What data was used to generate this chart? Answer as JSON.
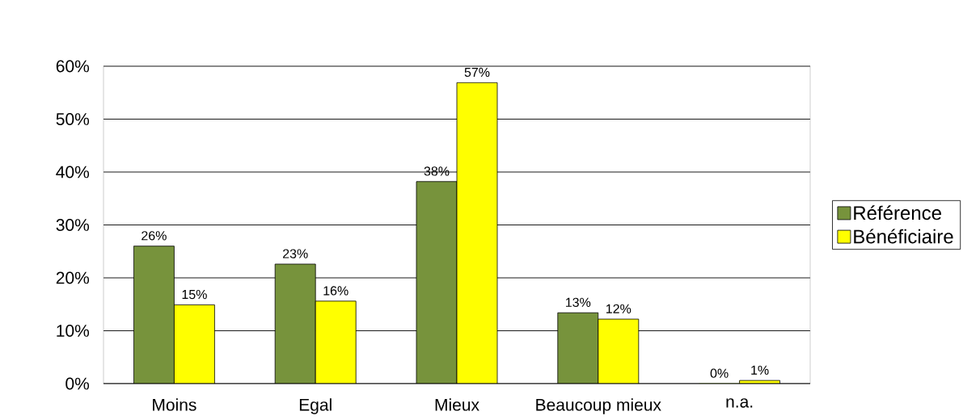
{
  "chart_data": {
    "type": "bar",
    "categories": [
      "Moins",
      "Egal",
      "Mieux",
      "Beaucoup mieux",
      "n.a."
    ],
    "series": [
      {
        "name": "Référence",
        "color": "#77933c",
        "values": [
          26,
          22.6,
          38.2,
          13.4,
          0
        ],
        "value_labels": [
          "26%",
          "23%",
          "38%",
          "13%",
          "0%"
        ]
      },
      {
        "name": "Bénéficiaire",
        "color": "#ffff00",
        "values": [
          14.9,
          15.6,
          56.9,
          12.2,
          0.6
        ],
        "value_labels": [
          "15%",
          "16%",
          "57%",
          "12%",
          "1%"
        ]
      }
    ],
    "ylim": [
      0,
      60
    ],
    "yticks": [
      {
        "value": 0,
        "label": "0%"
      },
      {
        "value": 10,
        "label": "10%"
      },
      {
        "value": 20,
        "label": "20%"
      },
      {
        "value": 30,
        "label": "30%"
      },
      {
        "value": 40,
        "label": "40%"
      },
      {
        "value": 50,
        "label": "50%"
      },
      {
        "value": 60,
        "label": "60%"
      }
    ],
    "grid": "y",
    "legend": "right"
  }
}
